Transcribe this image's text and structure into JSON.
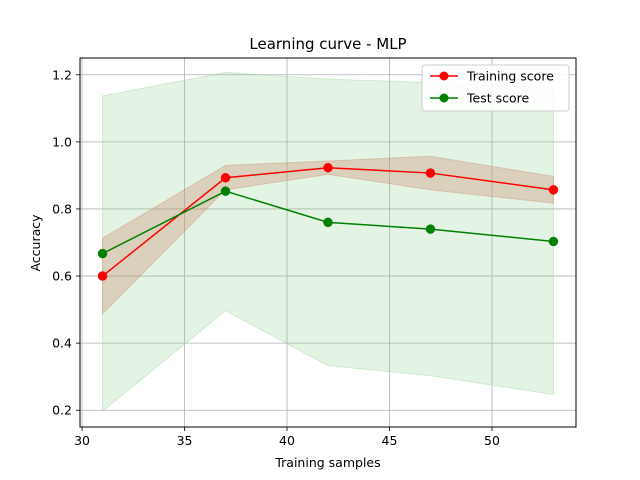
{
  "chart_data": {
    "type": "line",
    "title": "Learning curve - MLP",
    "xlabel": "Training samples",
    "ylabel": "Accuracy",
    "xlim": [
      29.9,
      54.1
    ],
    "ylim": [
      0.15,
      1.25
    ],
    "xticks": [
      30,
      35,
      40,
      45,
      50
    ],
    "yticks": [
      0.2,
      0.4,
      0.6,
      0.8,
      1.0,
      1.2
    ],
    "xtick_labels": [
      "30",
      "35",
      "40",
      "45",
      "50"
    ],
    "ytick_labels": [
      "0.2",
      "0.4",
      "0.6",
      "0.8",
      "1.0",
      "1.2"
    ],
    "grid": true,
    "legend_position": "top-right",
    "x": [
      31,
      37,
      42,
      47,
      53
    ],
    "series": [
      {
        "name": "Training score",
        "color": "#ff0000",
        "values": [
          0.6,
          0.893,
          0.923,
          0.907,
          0.857
        ],
        "band_upper": [
          0.713,
          0.93,
          0.943,
          0.957,
          0.897
        ],
        "band_lower": [
          0.487,
          0.857,
          0.903,
          0.857,
          0.817
        ],
        "band_color": "#c8866a"
      },
      {
        "name": "Test score",
        "color": "#008000",
        "values": [
          0.667,
          0.853,
          0.76,
          0.74,
          0.703
        ],
        "band_upper": [
          1.137,
          1.207,
          1.187,
          1.177,
          1.16
        ],
        "band_lower": [
          0.197,
          0.497,
          0.333,
          0.303,
          0.247
        ],
        "band_color": "#8fcf8f"
      }
    ]
  }
}
